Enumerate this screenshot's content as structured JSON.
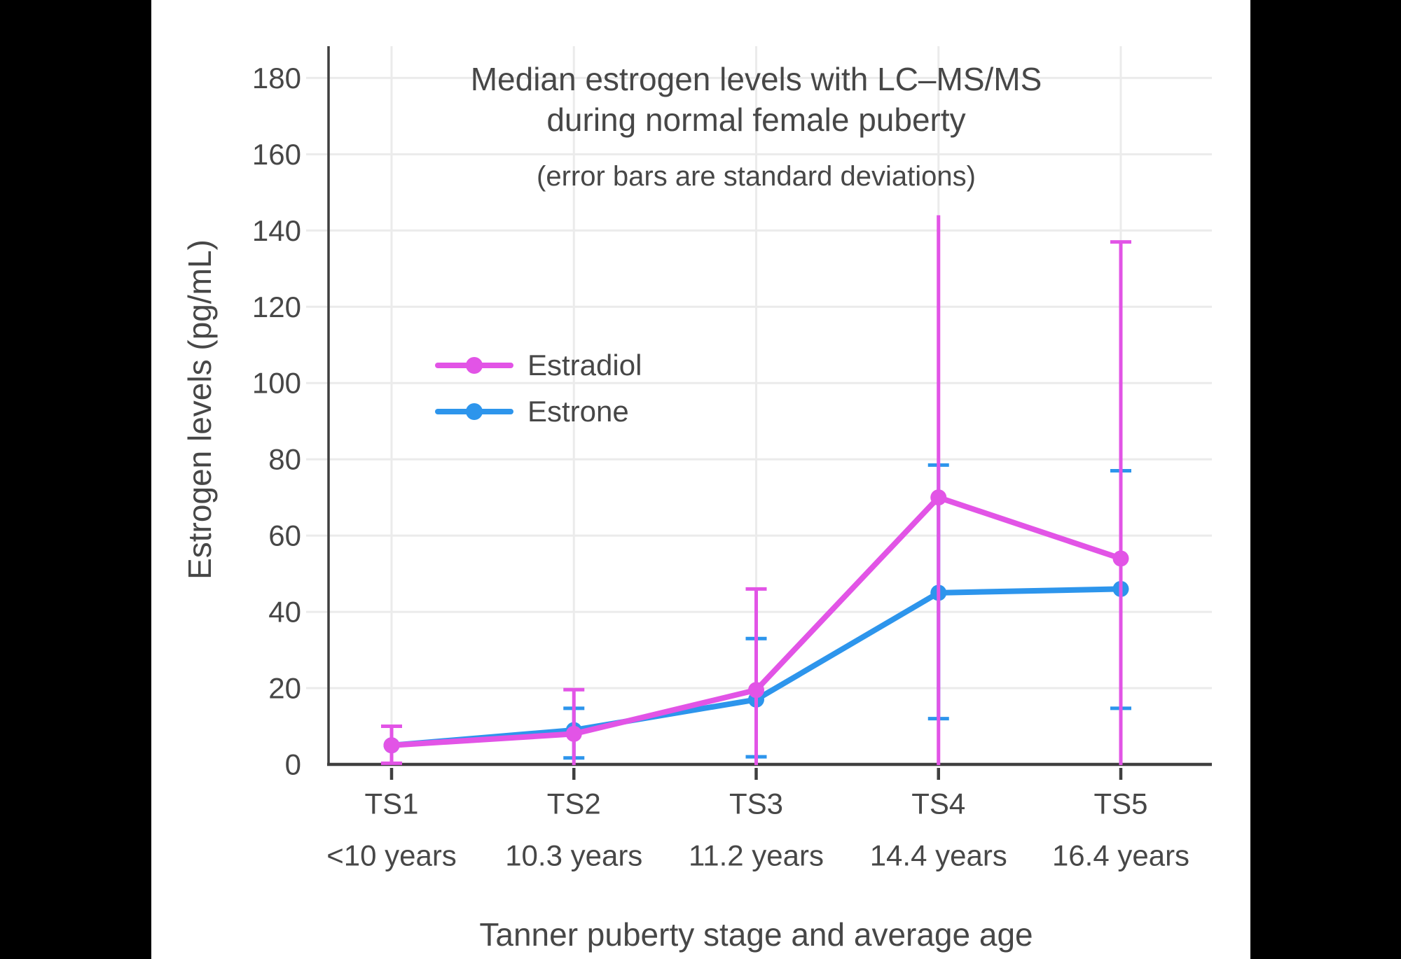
{
  "title": {
    "line1": "Median estrogen levels with LC–MS/MS",
    "line2": "during normal female puberty",
    "subtitle": "(error bars are standard deviations)"
  },
  "axes": {
    "y_label": "Estrogen levels (pg/mL)",
    "x_label": "Tanner puberty stage and average age",
    "y_ticks": [
      0,
      20,
      40,
      60,
      80,
      100,
      120,
      140,
      160,
      180
    ]
  },
  "legend": {
    "entries": [
      {
        "label": "Estradiol",
        "color": "#E254E6"
      },
      {
        "label": "Estrone",
        "color": "#2D95EC"
      }
    ]
  },
  "colors": {
    "background": "#ffffff",
    "letterbox": "#000000",
    "grid": "#EBEBEB",
    "axis": "#3F3F3F",
    "text": "#474747",
    "estradiol": "#E254E6",
    "estrone": "#2D95EC"
  },
  "chart_data": {
    "type": "line",
    "title": "Median estrogen levels with LC–MS/MS during normal female puberty",
    "subtitle": "(error bars are standard deviations)",
    "xlabel": "Tanner puberty stage and average age",
    "ylabel": "Estrogen levels (pg/mL)",
    "ylim": [
      0,
      190
    ],
    "y_tick_step": 20,
    "grid": true,
    "legend_position": "inside-upper-left",
    "error_bar_meaning": "standard deviation",
    "categories": [
      "TS1",
      "TS2",
      "TS3",
      "TS4",
      "TS5"
    ],
    "category_ages": [
      "<10 years",
      "10.3 years",
      "11.2 years",
      "14.4 years",
      "16.4 years"
    ],
    "series": [
      {
        "name": "Estrone",
        "color": "#2D95EC",
        "values": [
          5,
          9,
          17,
          45,
          46
        ],
        "err_top": [
          null,
          14.7,
          33,
          78.5,
          77
        ],
        "err_top_cap": [
          false,
          true,
          true,
          true,
          true
        ],
        "err_bottom": [
          null,
          1.7,
          2,
          12,
          14.7
        ]
      },
      {
        "name": "Estradiol",
        "color": "#E254E6",
        "values": [
          5,
          8,
          19.5,
          70,
          54
        ],
        "err_top": [
          10,
          19.6,
          46,
          144,
          137
        ],
        "err_top_cap": [
          true,
          true,
          true,
          false,
          true
        ],
        "err_bottom": [
          0.3,
          null,
          null,
          null,
          null
        ]
      }
    ],
    "legend_order": [
      "Estradiol",
      "Estrone"
    ]
  }
}
